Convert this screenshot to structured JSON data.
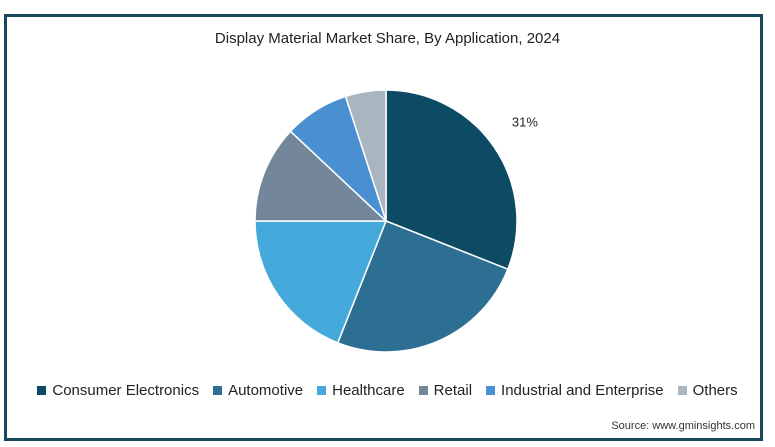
{
  "chart_data": {
    "type": "pie",
    "title": "Display Material Market Share, By Application, 2024",
    "slices": [
      {
        "label": "Consumer Electronics",
        "value": 31,
        "color": "#0d4a63"
      },
      {
        "label": "Automotive",
        "value": 25,
        "color": "#2d6e93"
      },
      {
        "label": "Healthcare",
        "value": 19,
        "color": "#46a9dc"
      },
      {
        "label": "Retail",
        "value": 12,
        "color": "#73869a"
      },
      {
        "label": "Industrial and Enterprise",
        "value": 8,
        "color": "#4a8fd1"
      },
      {
        "label": "Others",
        "value": 5,
        "color": "#a9b5bf"
      }
    ],
    "data_labels": [
      {
        "slice": "Consumer Electronics",
        "text": "31%"
      }
    ],
    "legend_position": "bottom"
  },
  "source": "Source: www.gminsights.com"
}
